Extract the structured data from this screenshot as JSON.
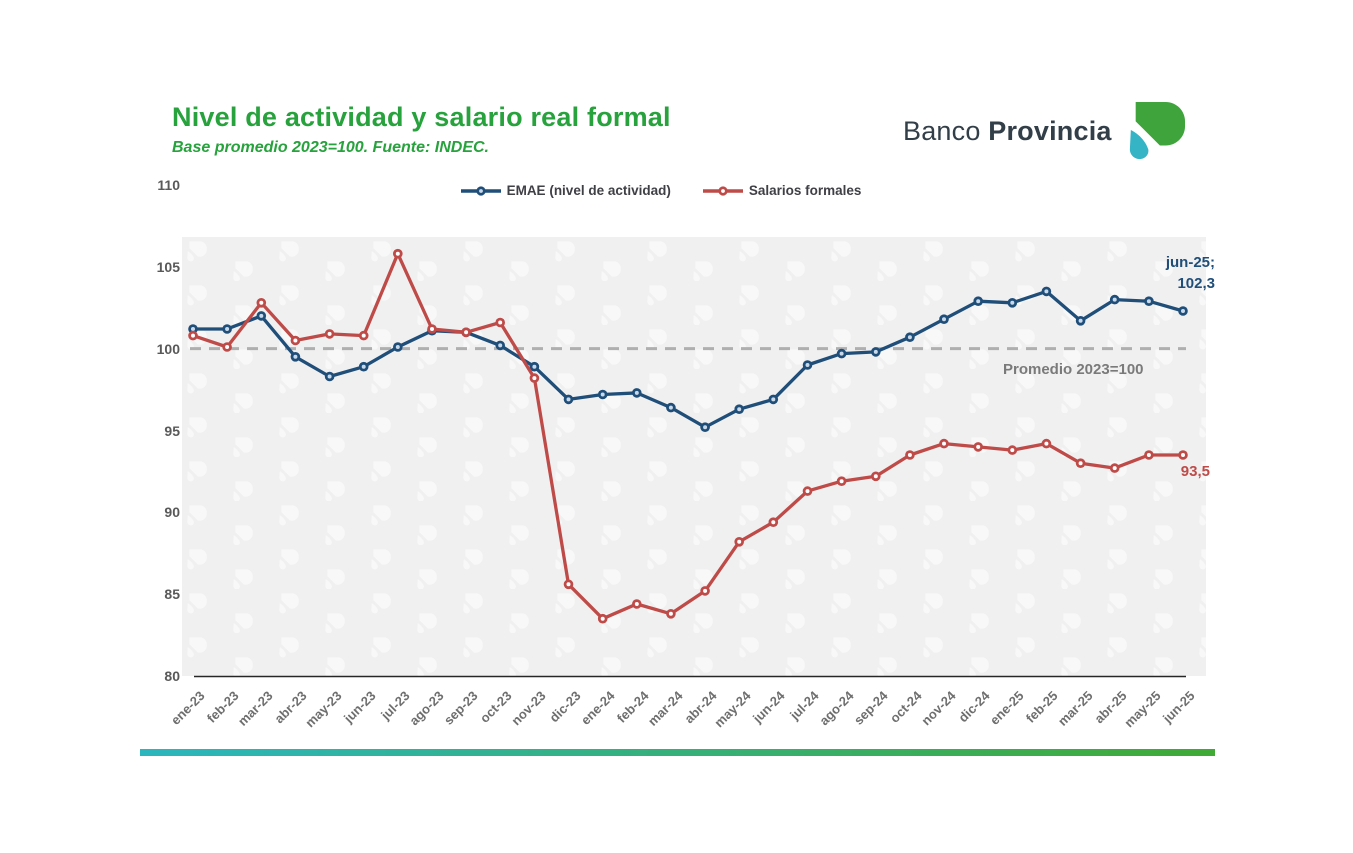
{
  "header": {
    "title": "Nivel de actividad y salario real formal",
    "subtitle": "Base promedio 2023=100. Fuente: INDEC.",
    "brand": {
      "name_regular": "Banco",
      "name_bold": "Provincia"
    }
  },
  "legend": {
    "items": [
      {
        "label": "EMAE (nivel de actividad)",
        "color": "#1F4E79"
      },
      {
        "label": "Salarios formales",
        "color": "#BE4B48"
      }
    ]
  },
  "annotations": {
    "last_emae_month": "jun-25;",
    "last_emae_value": "102,3",
    "last_salarios_value": "93,5",
    "reference_label": "Promedio 2023=100"
  },
  "chart_data": {
    "type": "line",
    "title": "Nivel de actividad y salario real formal",
    "subtitle": "Base promedio 2023=100. Fuente: INDEC.",
    "x": [
      "ene-23",
      "feb-23",
      "mar-23",
      "abr-23",
      "may-23",
      "jun-23",
      "jul-23",
      "ago-23",
      "sep-23",
      "oct-23",
      "nov-23",
      "dic-23",
      "ene-24",
      "feb-24",
      "mar-24",
      "abr-24",
      "may-24",
      "jun-24",
      "jul-24",
      "ago-24",
      "sep-24",
      "oct-24",
      "nov-24",
      "dic-24",
      "ene-25",
      "feb-25",
      "mar-25",
      "abr-25",
      "may-25",
      "jun-25"
    ],
    "series": [
      {
        "name": "EMAE (nivel de actividad)",
        "color": "#1F4E79",
        "marker_center": "#C9D9EC",
        "values": [
          101.2,
          101.2,
          102.0,
          99.5,
          98.3,
          98.9,
          100.1,
          101.1,
          101.0,
          100.2,
          98.9,
          96.9,
          97.2,
          97.3,
          96.4,
          95.2,
          96.3,
          96.9,
          99.0,
          99.7,
          99.8,
          100.7,
          101.8,
          102.9,
          102.8,
          103.5,
          101.7,
          103.0,
          102.9,
          102.3
        ]
      },
      {
        "name": "Salarios formales",
        "color": "#BE4B48",
        "marker_center": "#FFFFFF",
        "values": [
          100.8,
          100.1,
          102.8,
          100.5,
          100.9,
          100.8,
          105.8,
          101.2,
          101.0,
          101.6,
          98.2,
          85.6,
          83.5,
          84.4,
          83.8,
          85.2,
          88.2,
          89.4,
          91.3,
          91.9,
          92.2,
          93.5,
          94.2,
          94.0,
          93.8,
          94.2,
          93.0,
          92.7,
          93.5,
          93.5
        ]
      }
    ],
    "ylim": [
      80,
      110
    ],
    "yticks": [
      80,
      85,
      90,
      95,
      100,
      105,
      110
    ],
    "reference_line": {
      "value": 100,
      "label": "Promedio 2023=100",
      "style": "dashed",
      "color": "#B0AFAF"
    },
    "legend_position": "top",
    "grid": false
  },
  "colors": {
    "title_green": "#27A23C",
    "brand_text": "#323E48",
    "brand_green": "#3FA43C",
    "brand_teal": "#35B4C6",
    "emae_blue": "#1F4E79",
    "salarios_red": "#BE4B48",
    "axis_text": "#595959",
    "plot_bg": "#F1F0F1",
    "bottom_bar_from": "#2BB6BE",
    "bottom_bar_to": "#40AA35"
  }
}
